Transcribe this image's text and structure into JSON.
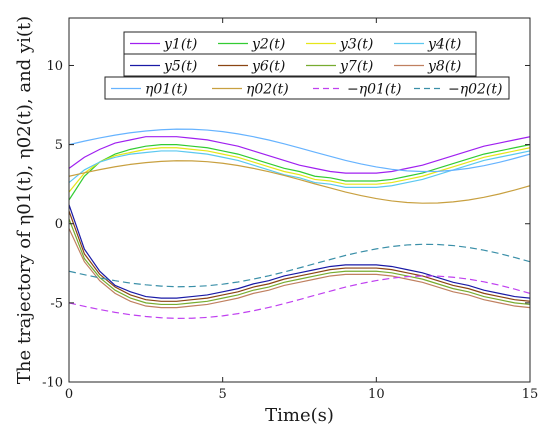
{
  "chart_data": {
    "type": "line",
    "xlabel": "Time(s)",
    "ylabel": "The trajectory of η01(t), η02(t), and yi(t)",
    "xlim": [
      0,
      15
    ],
    "ylim": [
      -10,
      13
    ],
    "xticks": [
      0,
      5,
      10,
      15
    ],
    "yticks": [
      -10,
      -5,
      0,
      5,
      10
    ],
    "grid": false,
    "legend_position": "top-center",
    "x": [
      0,
      0.5,
      1,
      1.5,
      2,
      2.5,
      3,
      3.5,
      4,
      4.5,
      5,
      5.5,
      6,
      6.5,
      7,
      7.5,
      8,
      8.5,
      9,
      9.5,
      10,
      10.5,
      11,
      11.5,
      12,
      12.5,
      13,
      13.5,
      14,
      14.5,
      15
    ],
    "series": [
      {
        "name": "y1(t)",
        "color": "#a020f0",
        "style": "solid",
        "values": [
          3.5,
          4.2,
          4.7,
          5.1,
          5.3,
          5.5,
          5.5,
          5.5,
          5.4,
          5.3,
          5.1,
          4.9,
          4.6,
          4.3,
          4.0,
          3.7,
          3.5,
          3.3,
          3.2,
          3.2,
          3.2,
          3.3,
          3.5,
          3.7,
          4.0,
          4.3,
          4.6,
          4.9,
          5.1,
          5.3,
          5.5
        ]
      },
      {
        "name": "y2(t)",
        "color": "#33cc33",
        "style": "solid",
        "values": [
          1.5,
          3.0,
          3.9,
          4.4,
          4.7,
          4.9,
          5.0,
          5.0,
          4.9,
          4.8,
          4.6,
          4.4,
          4.1,
          3.8,
          3.5,
          3.3,
          3.0,
          2.9,
          2.7,
          2.7,
          2.7,
          2.8,
          3.0,
          3.2,
          3.5,
          3.8,
          4.1,
          4.4,
          4.6,
          4.8,
          5.0
        ]
      },
      {
        "name": "y3(t)",
        "color": "#e6e61a",
        "style": "solid",
        "values": [
          2.0,
          3.2,
          3.9,
          4.3,
          4.5,
          4.7,
          4.8,
          4.8,
          4.7,
          4.6,
          4.4,
          4.2,
          3.9,
          3.6,
          3.3,
          3.1,
          2.8,
          2.7,
          2.5,
          2.5,
          2.5,
          2.6,
          2.8,
          3.0,
          3.3,
          3.6,
          3.9,
          4.2,
          4.4,
          4.6,
          4.8
        ]
      },
      {
        "name": "y4(t)",
        "color": "#5bc8f0",
        "style": "solid",
        "values": [
          2.6,
          3.4,
          3.9,
          4.2,
          4.4,
          4.5,
          4.6,
          4.6,
          4.5,
          4.4,
          4.2,
          4.0,
          3.7,
          3.4,
          3.1,
          2.9,
          2.6,
          2.5,
          2.3,
          2.3,
          2.3,
          2.4,
          2.6,
          2.8,
          3.1,
          3.4,
          3.7,
          4.0,
          4.2,
          4.4,
          4.6
        ]
      },
      {
        "name": "y5(t)",
        "color": "#1a1aa6",
        "style": "solid",
        "values": [
          1.2,
          -1.6,
          -3.0,
          -3.9,
          -4.3,
          -4.6,
          -4.7,
          -4.7,
          -4.6,
          -4.5,
          -4.3,
          -4.1,
          -3.8,
          -3.6,
          -3.3,
          -3.1,
          -2.9,
          -2.7,
          -2.6,
          -2.6,
          -2.6,
          -2.7,
          -2.9,
          -3.1,
          -3.4,
          -3.7,
          -3.9,
          -4.2,
          -4.4,
          -4.6,
          -4.7
        ]
      },
      {
        "name": "y6(t)",
        "color": "#8b4513",
        "style": "solid",
        "values": [
          0.8,
          -1.9,
          -3.2,
          -4.0,
          -4.5,
          -4.8,
          -4.9,
          -4.9,
          -4.8,
          -4.7,
          -4.5,
          -4.3,
          -4.0,
          -3.8,
          -3.5,
          -3.3,
          -3.1,
          -2.9,
          -2.8,
          -2.8,
          -2.8,
          -2.9,
          -3.1,
          -3.3,
          -3.6,
          -3.9,
          -4.1,
          -4.4,
          -4.6,
          -4.8,
          -4.9
        ]
      },
      {
        "name": "y7(t)",
        "color": "#77ac30",
        "style": "solid",
        "values": [
          0.3,
          -2.2,
          -3.4,
          -4.2,
          -4.7,
          -5.0,
          -5.1,
          -5.1,
          -5.0,
          -4.9,
          -4.7,
          -4.5,
          -4.2,
          -4.0,
          -3.7,
          -3.5,
          -3.3,
          -3.1,
          -3.0,
          -3.0,
          -3.0,
          -3.1,
          -3.3,
          -3.5,
          -3.8,
          -4.1,
          -4.3,
          -4.6,
          -4.8,
          -5.0,
          -5.1
        ]
      },
      {
        "name": "y8(t)",
        "color": "#c08060",
        "style": "solid",
        "values": [
          -0.3,
          -2.4,
          -3.6,
          -4.4,
          -4.9,
          -5.2,
          -5.3,
          -5.3,
          -5.2,
          -5.1,
          -4.9,
          -4.7,
          -4.4,
          -4.2,
          -3.9,
          -3.7,
          -3.5,
          -3.3,
          -3.2,
          -3.2,
          -3.2,
          -3.3,
          -3.5,
          -3.7,
          -4.0,
          -4.3,
          -4.5,
          -4.8,
          -5.0,
          -5.2,
          -5.3
        ]
      },
      {
        "name": "η01(t)",
        "color": "#66b3ff",
        "style": "solid",
        "values": [
          5.0,
          5.22,
          5.42,
          5.6,
          5.75,
          5.86,
          5.94,
          5.98,
          5.97,
          5.92,
          5.82,
          5.68,
          5.5,
          5.29,
          5.05,
          4.79,
          4.52,
          4.26,
          4.0,
          3.78,
          3.59,
          3.44,
          3.34,
          3.3,
          3.31,
          3.38,
          3.5,
          3.67,
          3.88,
          4.13,
          4.4
        ]
      },
      {
        "name": "η02(t)",
        "color": "#c8a040",
        "style": "solid",
        "values": [
          3.0,
          3.22,
          3.42,
          3.6,
          3.75,
          3.86,
          3.94,
          3.98,
          3.97,
          3.92,
          3.82,
          3.68,
          3.5,
          3.29,
          3.05,
          2.79,
          2.52,
          2.26,
          2.0,
          1.78,
          1.59,
          1.44,
          1.34,
          1.3,
          1.31,
          1.38,
          1.5,
          1.67,
          1.88,
          2.13,
          2.4
        ]
      },
      {
        "name": "−η01(t)",
        "color": "#c040f0",
        "style": "dashed",
        "values": [
          -5.0,
          -5.22,
          -5.42,
          -5.6,
          -5.75,
          -5.86,
          -5.94,
          -5.98,
          -5.97,
          -5.92,
          -5.82,
          -5.68,
          -5.5,
          -5.29,
          -5.05,
          -4.79,
          -4.52,
          -4.26,
          -4.0,
          -3.78,
          -3.59,
          -3.44,
          -3.34,
          -3.3,
          -3.31,
          -3.38,
          -3.5,
          -3.67,
          -3.88,
          -4.13,
          -4.4
        ]
      },
      {
        "name": "−η02(t)",
        "color": "#3a8fa8",
        "style": "dashed",
        "values": [
          -3.0,
          -3.22,
          -3.42,
          -3.6,
          -3.75,
          -3.86,
          -3.94,
          -3.98,
          -3.97,
          -3.92,
          -3.82,
          -3.68,
          -3.5,
          -3.29,
          -3.05,
          -2.79,
          -2.52,
          -2.26,
          -2.0,
          -1.78,
          -1.59,
          -1.44,
          -1.34,
          -1.3,
          -1.31,
          -1.38,
          -1.5,
          -1.67,
          -1.88,
          -2.13,
          -2.4
        ]
      }
    ]
  }
}
